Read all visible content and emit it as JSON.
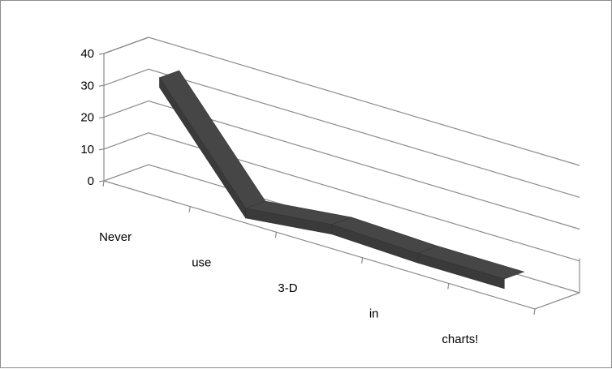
{
  "chart_data": {
    "type": "line",
    "style": "3d-ribbon",
    "categories": [
      "Never",
      "use",
      "3-D",
      "in",
      "charts!"
    ],
    "series": [
      {
        "values": [
          35,
          2,
          5,
          4,
          4
        ],
        "color": "#464646"
      }
    ],
    "y_ticks": [
      0,
      10,
      20,
      30,
      40
    ],
    "ylim": [
      0,
      40
    ],
    "grid": true,
    "legend": "none"
  }
}
